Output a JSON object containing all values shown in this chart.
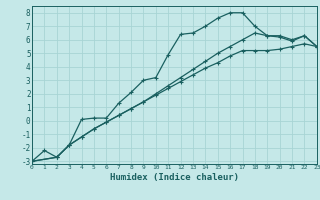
{
  "xlabel": "Humidex (Indice chaleur)",
  "bg_color": "#c5e8e8",
  "grid_color": "#a8d4d4",
  "line_color": "#1a6060",
  "xlim": [
    0,
    23
  ],
  "ylim": [
    -3.2,
    8.5
  ],
  "yticks": [
    -3,
    -2,
    -1,
    0,
    1,
    2,
    3,
    4,
    5,
    6,
    7,
    8
  ],
  "xticks": [
    0,
    1,
    2,
    3,
    4,
    5,
    6,
    7,
    8,
    9,
    10,
    11,
    12,
    13,
    14,
    15,
    16,
    17,
    18,
    19,
    20,
    21,
    22,
    23
  ],
  "curve1_x": [
    0,
    1,
    2,
    3,
    4,
    5,
    6,
    7,
    8,
    9,
    10,
    11,
    12,
    13,
    14,
    15,
    16,
    17,
    18,
    19,
    20,
    21,
    22,
    23
  ],
  "curve1_y": [
    -3.0,
    -2.2,
    -2.7,
    -1.8,
    0.1,
    0.2,
    0.2,
    1.3,
    2.1,
    3.0,
    3.2,
    4.9,
    6.4,
    6.5,
    7.0,
    7.6,
    8.0,
    8.0,
    7.0,
    6.3,
    6.2,
    5.9,
    6.3,
    5.5
  ],
  "curve2_x": [
    0,
    2,
    3,
    4,
    5,
    6,
    7,
    8,
    9,
    10,
    11,
    12,
    13,
    14,
    15,
    16,
    17,
    18,
    19,
    20,
    21,
    22,
    23
  ],
  "curve2_y": [
    -3.0,
    -2.7,
    -1.8,
    -1.2,
    -0.6,
    -0.1,
    0.4,
    0.9,
    1.4,
    1.9,
    2.4,
    2.9,
    3.4,
    3.9,
    4.3,
    4.8,
    5.2,
    5.2,
    5.2,
    5.3,
    5.5,
    5.7,
    5.5
  ],
  "curve3_x": [
    0,
    2,
    3,
    4,
    5,
    6,
    7,
    8,
    9,
    10,
    11,
    12,
    13,
    14,
    15,
    16,
    17,
    18,
    19,
    20,
    21,
    22,
    23
  ],
  "curve3_y": [
    -3.0,
    -2.7,
    -1.8,
    -1.2,
    -0.6,
    -0.1,
    0.4,
    0.9,
    1.4,
    2.0,
    2.6,
    3.2,
    3.8,
    4.4,
    5.0,
    5.5,
    6.0,
    6.5,
    6.3,
    6.3,
    6.0,
    6.3,
    5.5
  ]
}
